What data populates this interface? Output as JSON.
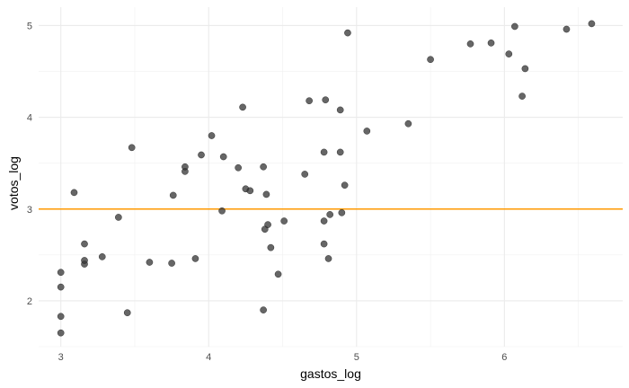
{
  "chart_data": {
    "type": "scatter",
    "title": "",
    "xlabel": "gastos_log",
    "ylabel": "votos_log",
    "xlim": [
      2.85,
      6.8
    ],
    "ylim": [
      1.5,
      5.2
    ],
    "x_ticks": [
      3,
      4,
      5,
      6
    ],
    "y_ticks": [
      2,
      3,
      4,
      5
    ],
    "x_tick_labels": [
      "3",
      "4",
      "5",
      "6"
    ],
    "y_tick_labels": [
      "2",
      "3",
      "4",
      "5"
    ],
    "grid": true,
    "hline": {
      "y": 3.0,
      "color": "#FF9900"
    },
    "point_color": "#333333",
    "points": [
      {
        "x": 3.0,
        "y": 1.65
      },
      {
        "x": 3.0,
        "y": 1.83
      },
      {
        "x": 3.0,
        "y": 2.15
      },
      {
        "x": 3.0,
        "y": 2.31
      },
      {
        "x": 3.09,
        "y": 3.18
      },
      {
        "x": 3.16,
        "y": 2.4
      },
      {
        "x": 3.16,
        "y": 2.44
      },
      {
        "x": 3.16,
        "y": 2.62
      },
      {
        "x": 3.28,
        "y": 2.48
      },
      {
        "x": 3.39,
        "y": 2.91
      },
      {
        "x": 3.45,
        "y": 1.87
      },
      {
        "x": 3.48,
        "y": 3.67
      },
      {
        "x": 3.6,
        "y": 2.42
      },
      {
        "x": 3.75,
        "y": 2.41
      },
      {
        "x": 3.76,
        "y": 3.15
      },
      {
        "x": 3.84,
        "y": 3.41
      },
      {
        "x": 3.84,
        "y": 3.46
      },
      {
        "x": 3.91,
        "y": 2.46
      },
      {
        "x": 3.95,
        "y": 3.59
      },
      {
        "x": 4.02,
        "y": 3.8
      },
      {
        "x": 4.09,
        "y": 2.98
      },
      {
        "x": 4.1,
        "y": 3.57
      },
      {
        "x": 4.2,
        "y": 3.45
      },
      {
        "x": 4.23,
        "y": 4.11
      },
      {
        "x": 4.25,
        "y": 3.22
      },
      {
        "x": 4.28,
        "y": 3.2
      },
      {
        "x": 4.37,
        "y": 3.46
      },
      {
        "x": 4.37,
        "y": 1.9
      },
      {
        "x": 4.38,
        "y": 2.78
      },
      {
        "x": 4.39,
        "y": 3.16
      },
      {
        "x": 4.4,
        "y": 2.83
      },
      {
        "x": 4.42,
        "y": 2.58
      },
      {
        "x": 4.47,
        "y": 2.29
      },
      {
        "x": 4.51,
        "y": 2.87
      },
      {
        "x": 4.65,
        "y": 3.38
      },
      {
        "x": 4.68,
        "y": 4.18
      },
      {
        "x": 4.78,
        "y": 2.62
      },
      {
        "x": 4.78,
        "y": 2.87
      },
      {
        "x": 4.78,
        "y": 3.62
      },
      {
        "x": 4.79,
        "y": 4.19
      },
      {
        "x": 4.81,
        "y": 2.46
      },
      {
        "x": 4.82,
        "y": 2.94
      },
      {
        "x": 4.89,
        "y": 3.62
      },
      {
        "x": 4.89,
        "y": 4.08
      },
      {
        "x": 4.9,
        "y": 2.96
      },
      {
        "x": 4.92,
        "y": 3.26
      },
      {
        "x": 4.94,
        "y": 4.92
      },
      {
        "x": 5.07,
        "y": 3.85
      },
      {
        "x": 5.35,
        "y": 3.93
      },
      {
        "x": 5.5,
        "y": 4.63
      },
      {
        "x": 5.77,
        "y": 4.8
      },
      {
        "x": 5.91,
        "y": 4.81
      },
      {
        "x": 6.03,
        "y": 4.69
      },
      {
        "x": 6.07,
        "y": 4.99
      },
      {
        "x": 6.12,
        "y": 4.23
      },
      {
        "x": 6.14,
        "y": 4.53
      },
      {
        "x": 6.42,
        "y": 4.96
      },
      {
        "x": 6.59,
        "y": 5.02
      }
    ]
  }
}
